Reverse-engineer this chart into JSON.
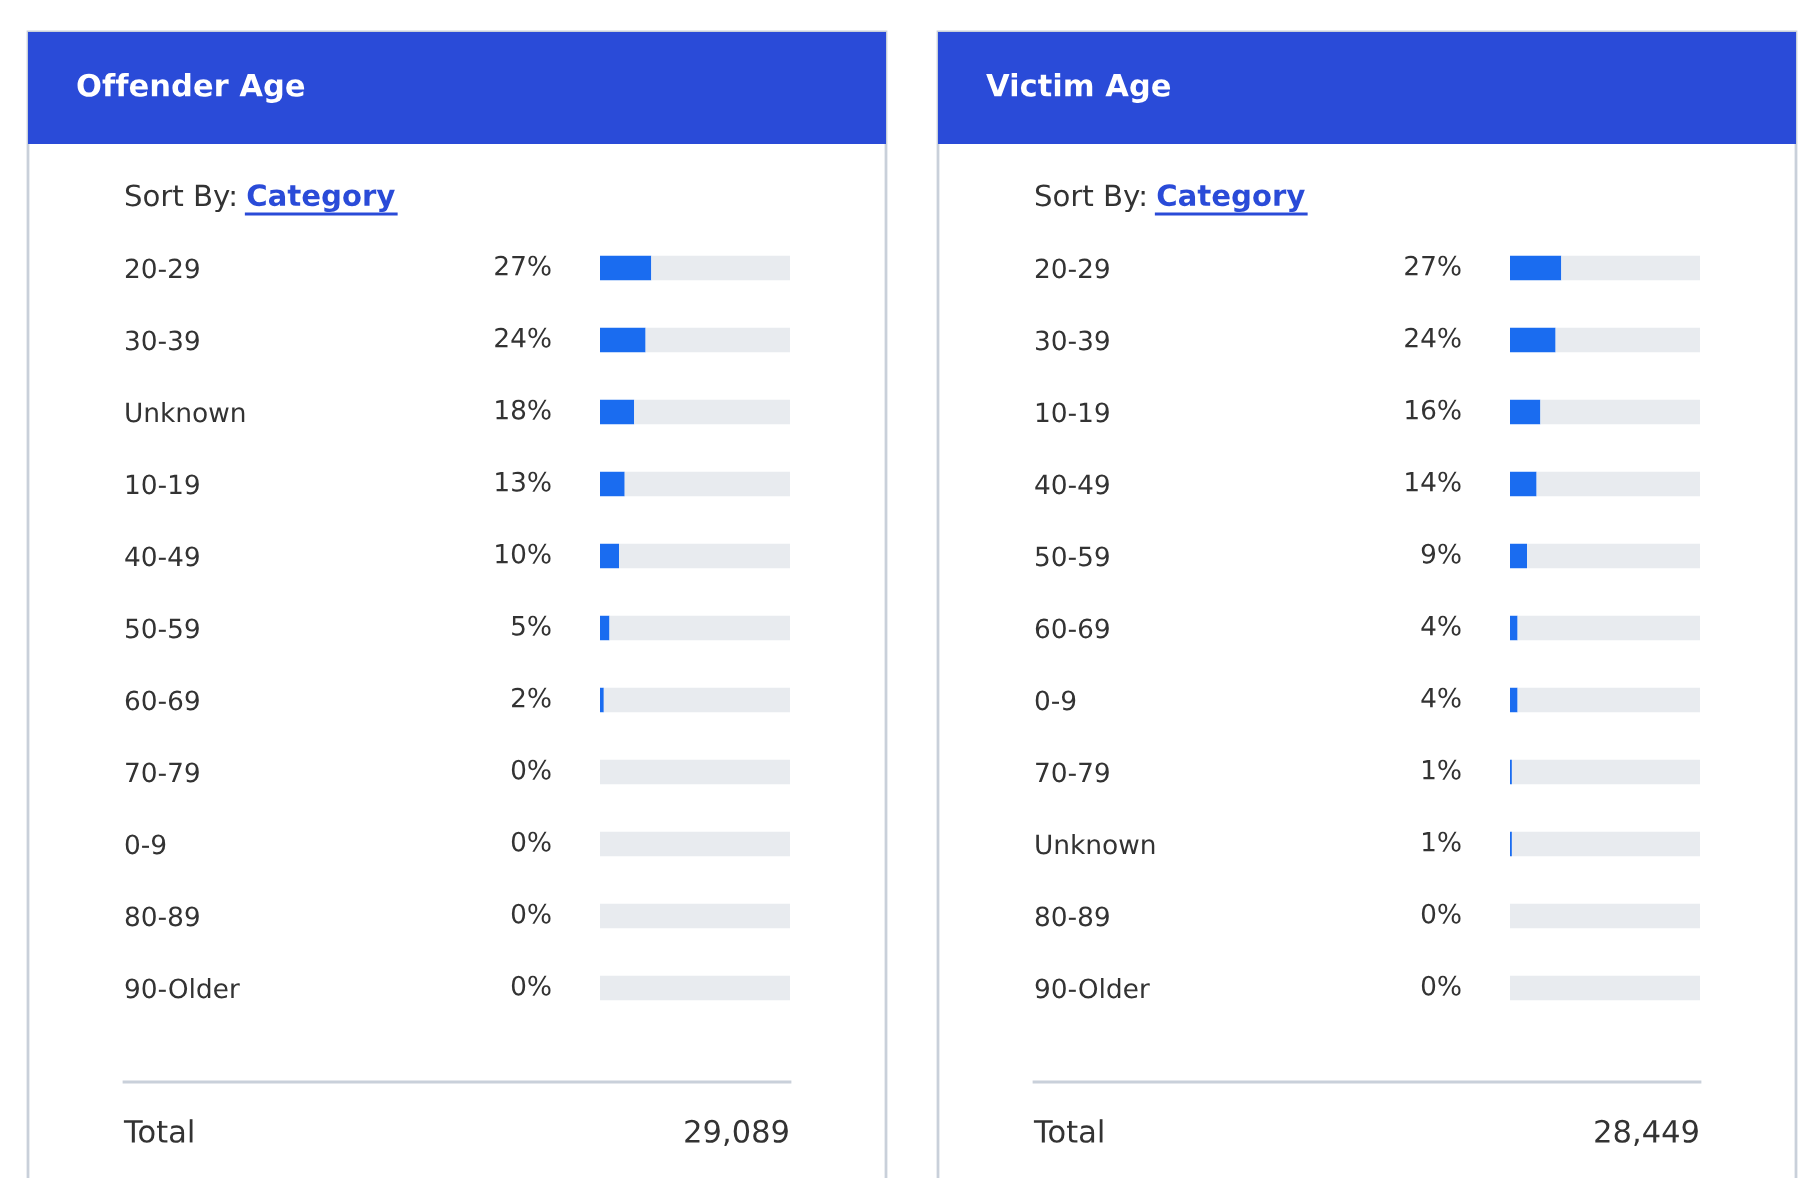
{
  "chart_data": [
    {
      "type": "bar",
      "orientation": "horizontal",
      "stacked": true,
      "title": "Offender Age",
      "categories": [
        "20-29",
        "30-39",
        "Unknown",
        "10-19",
        "40-49",
        "50-59",
        "60-69",
        "70-79",
        "0-9",
        "80-89",
        "90-Older"
      ],
      "series": [
        {
          "color": "#1a6cf0",
          "values": [
            27,
            24,
            18,
            13,
            10,
            5,
            2,
            0,
            0,
            0,
            0
          ],
          "value_labels": [
            "27%",
            "24%",
            "18%",
            "13%",
            "10%",
            "5%",
            "2%",
            "0%",
            "0%",
            "0%",
            "0%"
          ]
        },
        {
          "color": "#e8ebef",
          "values": [
            73,
            76,
            82,
            87,
            90,
            95,
            98,
            100,
            100,
            100,
            100
          ]
        }
      ],
      "xlim": [
        0,
        100
      ],
      "tick_labels": "y",
      "annotations": [
        "Sort By:",
        "Category",
        "Total",
        "29,089"
      ]
    },
    {
      "type": "bar",
      "orientation": "horizontal",
      "stacked": true,
      "title": "Victim Age",
      "categories": [
        "20-29",
        "30-39",
        "10-19",
        "40-49",
        "50-59",
        "60-69",
        "0-9",
        "70-79",
        "Unknown",
        "80-89",
        "90-Older"
      ],
      "series": [
        {
          "color": "#1a6cf0",
          "values": [
            27,
            24,
            16,
            14,
            9,
            4,
            4,
            1,
            1,
            0,
            0
          ],
          "value_labels": [
            "27%",
            "24%",
            "16%",
            "14%",
            "9%",
            "4%",
            "4%",
            "1%",
            "1%",
            "0%",
            "0%"
          ]
        },
        {
          "color": "#e8ebef",
          "values": [
            73,
            76,
            84,
            86,
            91,
            96,
            96,
            99,
            99,
            100,
            100
          ]
        }
      ],
      "xlim": [
        0,
        100
      ],
      "tick_labels": "y",
      "annotations": [
        "Sort By:",
        "Category",
        "Total",
        "28,449"
      ]
    }
  ]
}
